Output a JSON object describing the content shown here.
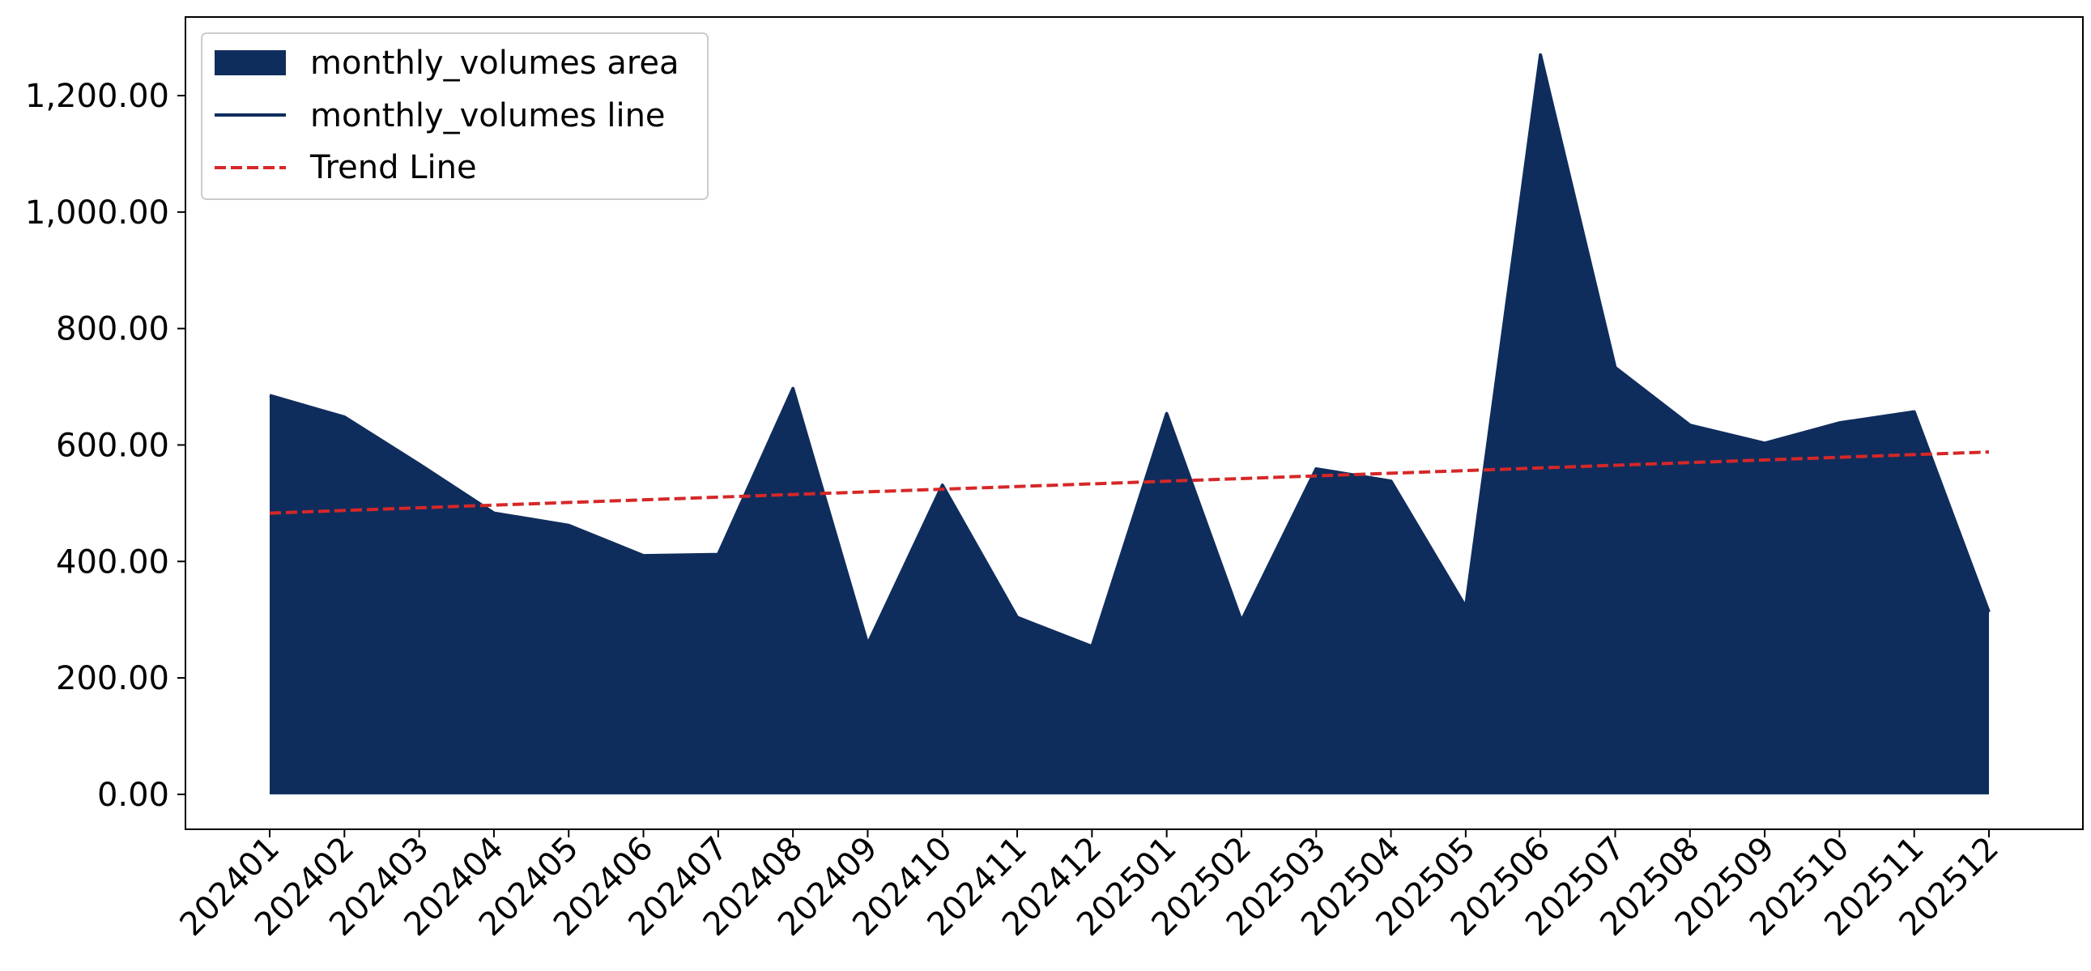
{
  "chart_data": {
    "type": "area",
    "title": "",
    "xlabel": "",
    "ylabel": "",
    "categories": [
      "202401",
      "202402",
      "202403",
      "202404",
      "202405",
      "202406",
      "202407",
      "202408",
      "202409",
      "202410",
      "202411",
      "202412",
      "202501",
      "202502",
      "202503",
      "202504",
      "202505",
      "202506",
      "202507",
      "202508",
      "202509",
      "202510",
      "202511",
      "202512"
    ],
    "series": [
      {
        "name": "monthly_volumes area",
        "kind": "area",
        "color": "#0f2d5c",
        "values": [
          685,
          648,
          567,
          483,
          462,
          410,
          412,
          697,
          258,
          531,
          304,
          254,
          654,
          298,
          559,
          538,
          322,
          1270,
          733,
          634,
          603,
          638,
          657,
          313
        ]
      },
      {
        "name": "monthly_volumes line",
        "kind": "line",
        "color": "#0f2d5c",
        "values": [
          685,
          648,
          567,
          483,
          462,
          410,
          412,
          697,
          258,
          531,
          304,
          254,
          654,
          298,
          559,
          538,
          322,
          1270,
          733,
          634,
          603,
          638,
          657,
          313
        ]
      },
      {
        "name": "Trend Line",
        "kind": "trend",
        "color": "#d62728",
        "start": 483,
        "end": 588
      }
    ],
    "ylim": [
      -60,
      1335
    ],
    "yticks": [
      0,
      200,
      400,
      600,
      800,
      1000,
      1200
    ],
    "ytick_labels": [
      "0.00",
      "200.00",
      "400.00",
      "600.00",
      "800.00",
      "1,000.00",
      "1,200.00"
    ],
    "grid": false,
    "legend_position": "upper-left"
  }
}
